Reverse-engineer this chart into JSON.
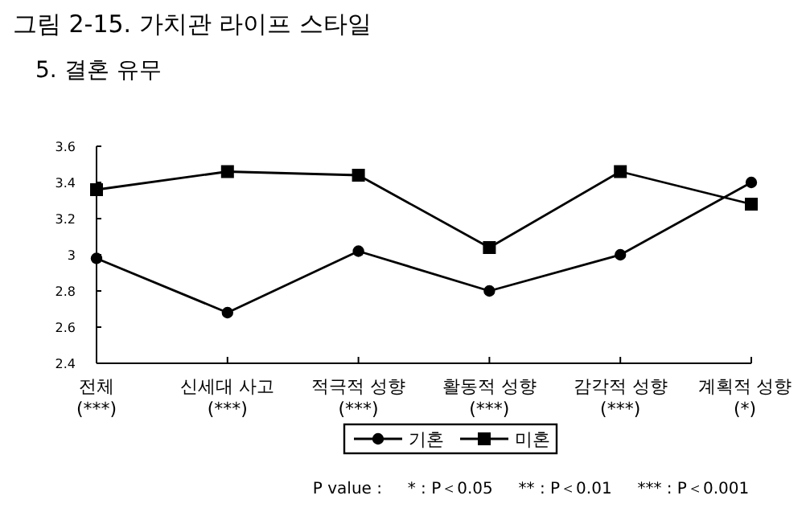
{
  "chart_data": {
    "type": "line",
    "title": "그림 2-15. 가치관 라이프 스타일",
    "subtitle": "5. 결혼 유무",
    "categories": [
      "전체\n(***)",
      "신세대 사고\n(***)",
      "적극적 성향\n(***)",
      "활동적 성향\n(***)",
      "감각적 성향\n(***)",
      "계획적 성향\n(*)"
    ],
    "series": [
      {
        "name": "기혼",
        "color": "#000000",
        "marker": "circle",
        "values": [
          2.98,
          2.68,
          3.02,
          2.8,
          3.0,
          3.4
        ]
      },
      {
        "name": "미혼",
        "color": "#000000",
        "marker": "square",
        "values": [
          3.36,
          3.46,
          3.44,
          3.04,
          3.46,
          3.28
        ]
      }
    ],
    "ylim": [
      2.4,
      3.6
    ],
    "yticks": [
      2.4,
      2.6,
      2.8,
      3,
      3.2,
      3.4,
      3.6
    ],
    "grid": false,
    "legend": "bottom",
    "line_style": "solid",
    "annotations": [
      "P value :     * : P＜0.05     ** : P＜0.01     *** : P＜0.001"
    ]
  }
}
